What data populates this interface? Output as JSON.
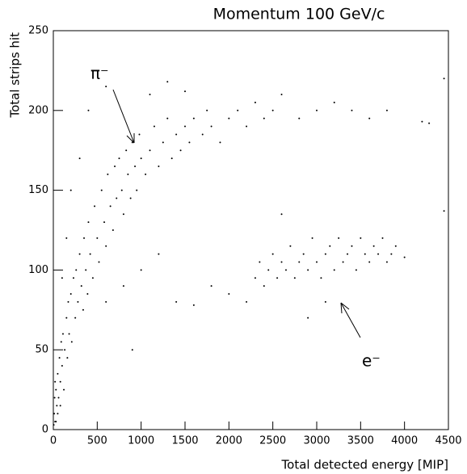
{
  "chart_data": {
    "type": "scatter",
    "title": "Momentum 100 GeV/c",
    "x_label": "Total detected energy [MIP]",
    "y_label": "Total strips hit",
    "annotations": [
      {
        "text": "π⁻"
      },
      {
        "text": "e⁻"
      }
    ],
    "color": "#000000",
    "xlim": [
      0,
      4500
    ],
    "xticks": [
      0,
      500,
      1000,
      1500,
      2000,
      2500,
      3000,
      3500,
      4000,
      4500
    ],
    "ylim": [
      0,
      250
    ],
    "yticks": [
      0,
      50,
      100,
      150,
      200,
      250
    ],
    "x": [
      5,
      10,
      15,
      20,
      30,
      40,
      50,
      60,
      70,
      80,
      90,
      100,
      110,
      120,
      130,
      150,
      160,
      170,
      180,
      200,
      210,
      230,
      250,
      260,
      280,
      300,
      320,
      340,
      350,
      370,
      390,
      400,
      420,
      450,
      470,
      500,
      520,
      550,
      580,
      600,
      620,
      650,
      680,
      700,
      720,
      750,
      780,
      800,
      830,
      850,
      880,
      900,
      930,
      950,
      980,
      1000,
      1050,
      1100,
      1150,
      1200,
      1250,
      1300,
      1350,
      1400,
      1450,
      1500,
      1550,
      1600,
      1700,
      1750,
      1800,
      1900,
      2000,
      2100,
      2200,
      2300,
      2400,
      2500,
      2600,
      2800,
      3000,
      3200,
      3400,
      3600,
      3800,
      2300,
      2350,
      2400,
      2450,
      2500,
      2550,
      2600,
      2650,
      2700,
      2750,
      2800,
      2850,
      2900,
      2950,
      3000,
      3050,
      3100,
      3150,
      3200,
      3250,
      3300,
      3350,
      3400,
      3450,
      3500,
      3550,
      3600,
      3650,
      3700,
      3750,
      3800,
      3850,
      3900,
      4000,
      100,
      150,
      200,
      300,
      600,
      800,
      1000,
      1200,
      1400,
      1600,
      1800,
      2000,
      2200,
      1300,
      1100,
      1500,
      600,
      4200,
      4450,
      4450,
      4280,
      900,
      400,
      2600,
      3100,
      2900,
      30,
      50,
      20,
      80
    ],
    "values": [
      3,
      10,
      20,
      5,
      25,
      15,
      35,
      20,
      45,
      30,
      55,
      40,
      60,
      25,
      50,
      70,
      45,
      80,
      60,
      85,
      55,
      95,
      70,
      100,
      80,
      110,
      90,
      75,
      120,
      100,
      85,
      130,
      110,
      95,
      140,
      120,
      105,
      150,
      130,
      115,
      160,
      140,
      125,
      165,
      145,
      170,
      150,
      135,
      175,
      160,
      145,
      180,
      165,
      150,
      185,
      170,
      160,
      175,
      190,
      165,
      180,
      195,
      170,
      185,
      175,
      190,
      180,
      195,
      185,
      200,
      190,
      180,
      195,
      200,
      190,
      205,
      195,
      200,
      210,
      195,
      200,
      205,
      200,
      195,
      200,
      95,
      105,
      90,
      100,
      110,
      95,
      105,
      100,
      115,
      95,
      105,
      110,
      100,
      120,
      105,
      95,
      110,
      115,
      100,
      120,
      105,
      110,
      115,
      100,
      120,
      110,
      105,
      115,
      110,
      120,
      105,
      110,
      115,
      108,
      95,
      120,
      150,
      170,
      80,
      90,
      100,
      110,
      80,
      78,
      90,
      85,
      80,
      218,
      210,
      212,
      215,
      193,
      220,
      137,
      192,
      50,
      200,
      135,
      80,
      70,
      5,
      10,
      30,
      15
    ]
  }
}
